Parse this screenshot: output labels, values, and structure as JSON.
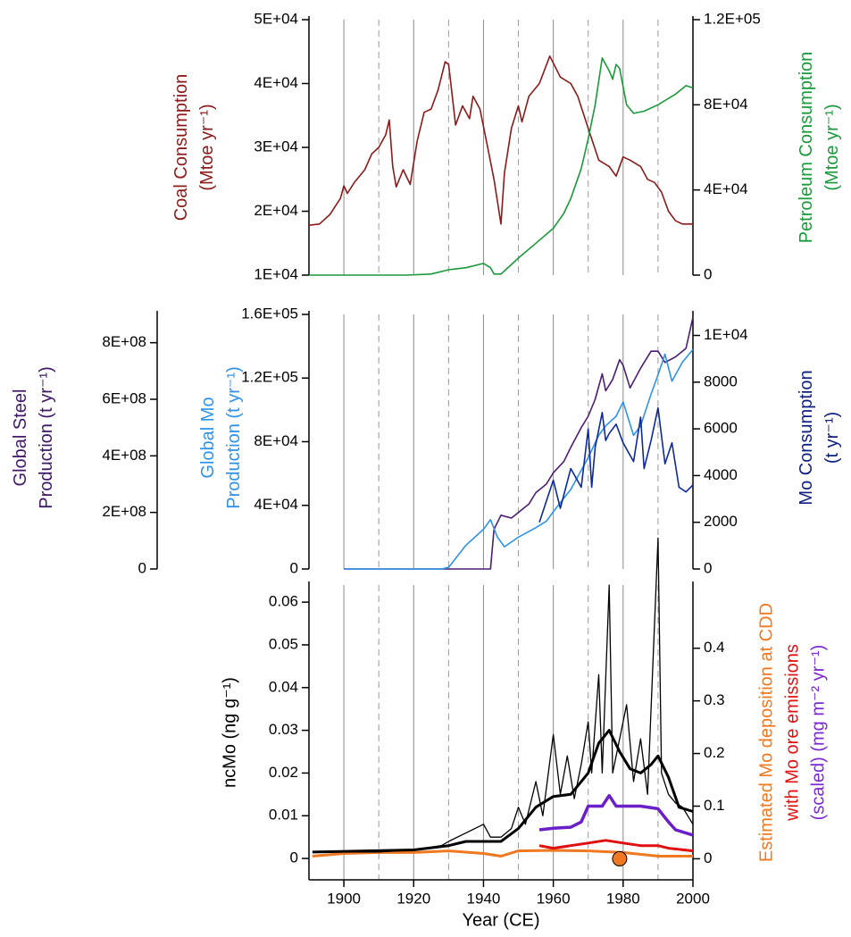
{
  "chart_data": [
    {
      "type": "line",
      "xlim": [
        1890,
        2000
      ],
      "xticks": [
        1900,
        1920,
        1940,
        1960,
        1980,
        2000
      ],
      "xminor": [
        1910,
        1930,
        1950,
        1970,
        1990
      ],
      "ylim": [
        10000,
        50000
      ],
      "yticks": [
        {
          "value": 10000,
          "label": "1E+04"
        },
        {
          "value": 20000,
          "label": "2E+04"
        },
        {
          "value": 30000,
          "label": "3E+04"
        },
        {
          "value": 40000,
          "label": "4E+04"
        },
        {
          "value": 50000,
          "label": "5E+04"
        }
      ],
      "y2lim": [
        0,
        120000
      ],
      "y2ticks": [
        0,
        {
          "value": 40000,
          "label": "4E+04"
        },
        {
          "value": 80000,
          "label": "8E+04"
        },
        {
          "value": 120000,
          "label": "1.2E+05"
        }
      ],
      "ylabel": {
        "lines": [
          "Coal Consumption",
          "(Mtoe yr⁻¹)"
        ],
        "color": "#8b1a1a"
      },
      "y2label": {
        "lines": [
          "Petroleum Consumption",
          "(Mtoe yr⁻¹)"
        ],
        "color": "#1a9a3a"
      },
      "series": [
        {
          "color": "#8b1a1a",
          "axis": "y",
          "x": [
            1890,
            1893,
            1896,
            1899,
            1900,
            1901,
            1903,
            1906,
            1908,
            1910,
            1912,
            1913,
            1914,
            1915,
            1917,
            1919,
            1921,
            1923,
            1925,
            1927,
            1929,
            1930,
            1932,
            1934,
            1936,
            1937,
            1939,
            1941,
            1943,
            1945,
            1946,
            1948,
            1950,
            1951,
            1953,
            1956,
            1959,
            1962,
            1965,
            1967,
            1970,
            1973,
            1976,
            1978,
            1980,
            1982,
            1985,
            1987,
            1989,
            1991,
            1993,
            1995,
            1997,
            2000
          ],
          "values": [
            17800,
            18000,
            19500,
            22000,
            24000,
            22800,
            24500,
            26500,
            29000,
            30000,
            32000,
            34300,
            27000,
            23800,
            26500,
            24200,
            31000,
            35500,
            36000,
            39000,
            43400,
            43000,
            33500,
            36500,
            34500,
            38000,
            36000,
            30500,
            25000,
            18000,
            26000,
            33000,
            36500,
            34000,
            38000,
            40000,
            44300,
            41000,
            40000,
            38000,
            33000,
            28000,
            27000,
            25500,
            28500,
            28000,
            27000,
            25000,
            24500,
            23000,
            20000,
            18500,
            18000,
            18000
          ]
        },
        {
          "color": "#1a9a3a",
          "axis": "y2",
          "x": [
            1890,
            1918,
            1925,
            1930,
            1935,
            1940,
            1942,
            1943,
            1945,
            1948,
            1950,
            1955,
            1960,
            1963,
            1965,
            1968,
            1970,
            1972,
            1974,
            1975,
            1976,
            1977,
            1978,
            1979,
            1981,
            1983,
            1986,
            1990,
            1993,
            1995,
            1998,
            2000
          ],
          "values": [
            0,
            0,
            500,
            2500,
            3500,
            5500,
            3500,
            500,
            500,
            5000,
            8000,
            15000,
            22000,
            29000,
            36000,
            50000,
            64000,
            80000,
            102000,
            99000,
            96000,
            92000,
            99000,
            97000,
            80000,
            76000,
            77000,
            80000,
            83000,
            85000,
            89000,
            88000
          ]
        }
      ]
    },
    {
      "type": "line",
      "xlim": [
        1890,
        2000
      ],
      "xticks": [
        1900,
        1920,
        1940,
        1960,
        1980,
        2000
      ],
      "xminor": [
        1910,
        1930,
        1950,
        1970,
        1990
      ],
      "ylim": [
        0,
        160000
      ],
      "yticks": [
        0,
        {
          "value": 40000,
          "label": "4E+04"
        },
        {
          "value": 80000,
          "label": "8E+04"
        },
        {
          "value": 120000,
          "label": "1.2E+05"
        },
        {
          "value": 160000,
          "label": "1.6E+05"
        }
      ],
      "y2lim": [
        0,
        10900
      ],
      "y2ticks": [
        0,
        2000,
        4000,
        6000,
        8000,
        {
          "value": 10000,
          "label": "1E+04"
        }
      ],
      "y3lim": [
        0,
        900000000
      ],
      "y3ticks": [
        0,
        {
          "value": 200000000,
          "label": "2E+08"
        },
        {
          "value": 400000000,
          "label": "4E+08"
        },
        {
          "value": 600000000,
          "label": "6E+08"
        },
        {
          "value": 800000000,
          "label": "8E+08"
        }
      ],
      "ylabel": {
        "lines": [
          "Global Mo",
          "Production (t yr⁻¹)"
        ],
        "color": "#2e93e8"
      },
      "y2label": {
        "lines": [
          "Mo Consumption",
          "(t yr⁻¹)"
        ],
        "color": "#0d1f80"
      },
      "y3label": {
        "lines": [
          "Global Steel",
          "Production (t yr⁻¹)"
        ],
        "color": "#3f1766"
      },
      "series": [
        {
          "color": "#4d1d73",
          "axis": "y3",
          "x": [
            1900,
            1942,
            1943,
            1945,
            1948,
            1950,
            1953,
            1955,
            1958,
            1960,
            1963,
            1965,
            1968,
            1970,
            1972,
            1974,
            1975,
            1977,
            1979,
            1980,
            1982,
            1985,
            1988,
            1990,
            1992,
            1995,
            1998,
            2000
          ],
          "values": [
            0,
            0,
            140000000,
            190000000,
            180000000,
            200000000,
            230000000,
            270000000,
            300000000,
            340000000,
            380000000,
            430000000,
            500000000,
            540000000,
            600000000,
            690000000,
            630000000,
            670000000,
            740000000,
            720000000,
            640000000,
            710000000,
            770000000,
            770000000,
            730000000,
            750000000,
            780000000,
            890000000
          ]
        },
        {
          "color": "#2e93e8",
          "axis": "y",
          "x": [
            1900,
            1928,
            1930,
            1935,
            1940,
            1942,
            1944,
            1946,
            1950,
            1955,
            1958,
            1960,
            1965,
            1970,
            1973,
            1975,
            1978,
            1980,
            1983,
            1985,
            1988,
            1990,
            1992,
            1994,
            1997,
            2000
          ],
          "values": [
            0,
            0,
            1000,
            15000,
            25000,
            31000,
            20000,
            14000,
            20000,
            26000,
            30000,
            36000,
            50000,
            70000,
            84000,
            90000,
            96000,
            105000,
            84000,
            90000,
            110000,
            122000,
            135000,
            118000,
            130000,
            138000
          ]
        },
        {
          "color": "#0d2a9a",
          "axis": "y2",
          "x": [
            1956,
            1958,
            1960,
            1962,
            1965,
            1968,
            1970,
            1971,
            1972,
            1974,
            1975,
            1976,
            1978,
            1980,
            1983,
            1985,
            1986,
            1988,
            1990,
            1992,
            1994,
            1996,
            1998,
            2000
          ],
          "values": [
            2000,
            2900,
            3800,
            2600,
            4300,
            3500,
            6000,
            3500,
            5200,
            6700,
            5500,
            5800,
            6200,
            5400,
            4600,
            6500,
            4300,
            5500,
            6900,
            4500,
            5400,
            3500,
            3300,
            3600
          ]
        }
      ]
    },
    {
      "type": "line",
      "xlim": [
        1890,
        2000
      ],
      "xticks": [
        1900,
        1920,
        1940,
        1960,
        1980,
        2000
      ],
      "xminor": [
        1910,
        1930,
        1950,
        1970,
        1990
      ],
      "xlabel": "Year (CE)",
      "ylim": [
        -0.005,
        0.064
      ],
      "yticks": [
        0,
        0.01,
        0.02,
        0.03,
        0.04,
        0.05,
        0.06
      ],
      "y2lim": [
        -0.04,
        0.52
      ],
      "y2ticks": [
        0,
        0.1,
        0.2,
        0.3,
        0.4
      ],
      "ylabel": {
        "lines": [
          "ncMo (ng g⁻¹)"
        ],
        "color": "#000000"
      },
      "y2label": {
        "lines": [
          {
            "text": "Estimated Mo deposition at CDD",
            "color": "#f07820"
          },
          {
            "text": "with Mo ore emissions",
            "color": "#e01010"
          },
          {
            "text": "(scaled) (mg m⁻² yr⁻¹)",
            "color": "#7a2ad0"
          }
        ]
      },
      "series": [
        {
          "color": "#f07820",
          "axis": "y2",
          "width": 3,
          "x": [
            1891,
            1900,
            1910,
            1920,
            1930,
            1940,
            1945,
            1950,
            1960,
            1970,
            1980,
            1990,
            2000
          ],
          "values": [
            0.005,
            0.01,
            0.012,
            0.012,
            0.015,
            0.01,
            0.005,
            0.015,
            0.016,
            0.015,
            0.012,
            0.005,
            0.005
          ]
        },
        {
          "color": "#e01010",
          "axis": "y2",
          "width": 3,
          "x": [
            1956,
            1960,
            1965,
            1970,
            1975,
            1980,
            1985,
            1990,
            1993,
            2000
          ],
          "values": [
            0.025,
            0.02,
            0.025,
            0.03,
            0.035,
            0.03,
            0.025,
            0.025,
            0.02,
            0.015
          ]
        },
        {
          "color": "#6a1fc8",
          "axis": "y2",
          "width": 3.5,
          "x": [
            1956,
            1960,
            1965,
            1968,
            1970,
            1974,
            1976,
            1978,
            1980,
            1985,
            1990,
            1993,
            1995,
            2000
          ],
          "values": [
            0.055,
            0.058,
            0.06,
            0.07,
            0.1,
            0.1,
            0.12,
            0.1,
            0.1,
            0.1,
            0.095,
            0.07,
            0.055,
            0.045
          ]
        },
        {
          "color": "#000000",
          "axis": "y",
          "width": 1.3,
          "x": [
            1891,
            1900,
            1910,
            1920,
            1928,
            1930,
            1935,
            1940,
            1942,
            1945,
            1948,
            1950,
            1952,
            1955,
            1957,
            1960,
            1962,
            1964,
            1966,
            1968,
            1970,
            1971,
            1973,
            1974,
            1976,
            1977,
            1979,
            1981,
            1983,
            1985,
            1987,
            1990,
            1991,
            1993,
            1995,
            1997,
            2000
          ],
          "values": [
            0.0015,
            0.0015,
            0.0015,
            0.002,
            0.003,
            0.004,
            0.006,
            0.008,
            0.005,
            0.005,
            0.007,
            0.012,
            0.008,
            0.018,
            0.01,
            0.029,
            0.015,
            0.024,
            0.014,
            0.022,
            0.032,
            0.02,
            0.043,
            0.02,
            0.064,
            0.02,
            0.028,
            0.036,
            0.018,
            0.028,
            0.015,
            0.075,
            0.02,
            0.015,
            0.013,
            0.012,
            0.008
          ]
        },
        {
          "color": "#000000",
          "axis": "y",
          "width": 3,
          "x": [
            1891,
            1920,
            1930,
            1935,
            1940,
            1945,
            1950,
            1955,
            1960,
            1965,
            1970,
            1973,
            1976,
            1979,
            1982,
            1985,
            1988,
            1990,
            1993,
            1996,
            2000
          ],
          "values": [
            0.0015,
            0.002,
            0.003,
            0.004,
            0.004,
            0.004,
            0.007,
            0.012,
            0.0145,
            0.015,
            0.02,
            0.027,
            0.03,
            0.025,
            0.021,
            0.02,
            0.022,
            0.024,
            0.019,
            0.012,
            0.011
          ]
        }
      ],
      "points": [
        {
          "x": 1979,
          "y": 0,
          "color": "#f07820",
          "axis": "y2"
        }
      ]
    }
  ]
}
